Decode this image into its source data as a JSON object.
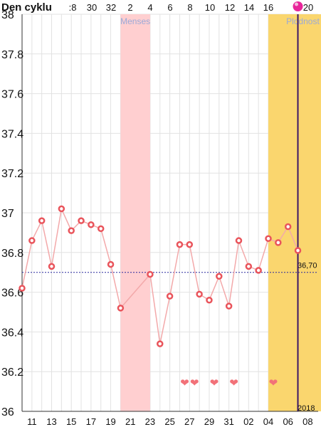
{
  "header": {
    "title": "Den cyklu"
  },
  "top_axis_labels": [
    ":8",
    "30",
    "32",
    "2",
    "4",
    "6",
    "8",
    "10",
    "12",
    "14",
    "16",
    "",
    "20"
  ],
  "bottom_axis_labels": [
    "11",
    "13",
    "15",
    "17",
    "19",
    "21",
    "23",
    "25",
    "27",
    "29",
    "31",
    "02",
    "04",
    "06",
    "08"
  ],
  "year_label": "2018",
  "baseline_label": "36,70",
  "bands": [
    {
      "label": "Menses",
      "color": "#ffcfd0",
      "label_color": "#9aa9d8",
      "from_index": 10,
      "to_index": 13
    },
    {
      "label": "Plodnost",
      "color": "#fad66e",
      "label_color": "#9aa9d8",
      "from_index": 25,
      "to_index": 32
    }
  ],
  "colors": {
    "line": "#f3a9aa",
    "marker": "#e9545b",
    "heart": "#f27178",
    "baseline": "#2a2a9e",
    "today": "#3b1768",
    "ovulation": "#e8259a"
  },
  "chart_data": {
    "type": "line",
    "title": "",
    "ylim": [
      36,
      38
    ],
    "y_ticks": [
      "36",
      "36.2",
      "36.4",
      "36.6",
      "36.8",
      "37",
      "37.2",
      "37.4",
      "37.6",
      "37.8",
      "38"
    ],
    "x_index_range": [
      0,
      32
    ],
    "baseline": 36.7,
    "today_index": 28,
    "ovulation_marker_index": 28,
    "points": [
      {
        "i": 0,
        "y": 36.62
      },
      {
        "i": 1,
        "y": 36.86
      },
      {
        "i": 2,
        "y": 36.96
      },
      {
        "i": 3,
        "y": 36.73
      },
      {
        "i": 4,
        "y": 37.02
      },
      {
        "i": 5,
        "y": 36.91
      },
      {
        "i": 6,
        "y": 36.96
      },
      {
        "i": 7,
        "y": 36.94
      },
      {
        "i": 8,
        "y": 36.92
      },
      {
        "i": 9,
        "y": 36.74
      },
      {
        "i": 10,
        "y": 36.52
      },
      {
        "i": 13,
        "y": 36.69
      },
      {
        "i": 14,
        "y": 36.34
      },
      {
        "i": 15,
        "y": 36.58
      },
      {
        "i": 16,
        "y": 36.84
      },
      {
        "i": 17,
        "y": 36.84
      },
      {
        "i": 18,
        "y": 36.59
      },
      {
        "i": 19,
        "y": 36.56
      },
      {
        "i": 20,
        "y": 36.68
      },
      {
        "i": 21,
        "y": 36.53
      },
      {
        "i": 22,
        "y": 36.86
      },
      {
        "i": 23,
        "y": 36.73
      },
      {
        "i": 24,
        "y": 36.71
      },
      {
        "i": 25,
        "y": 36.87
      },
      {
        "i": 26,
        "y": 36.85
      },
      {
        "i": 27,
        "y": 36.93
      },
      {
        "i": 28,
        "y": 36.81
      }
    ],
    "hearts": [
      16.5,
      17.5,
      19.5,
      21.5,
      25.5
    ]
  }
}
